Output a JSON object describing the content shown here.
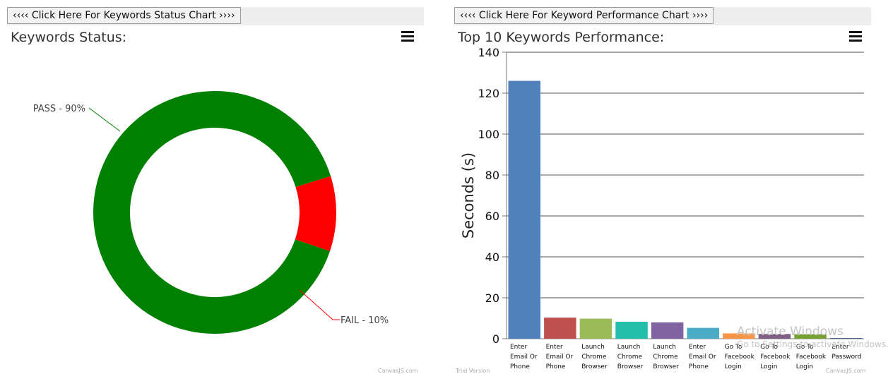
{
  "left": {
    "button_label": "‹‹‹‹ Click Here For Keywords Status Chart ››››",
    "credit": "CanvasJS.com"
  },
  "right": {
    "button_label": "‹‹‹‹ Click Here For Keyword Performance Chart ››››",
    "credit_left": "Trial Version",
    "credit_right": "CanvasJS.com"
  },
  "watermark": {
    "line1": "Activate Windows",
    "line2": "Go to Settings to activate Windows."
  },
  "chart_data": [
    {
      "type": "pie",
      "title": "Keywords Status:",
      "labels": [
        "PASS - 90%",
        "FAIL - 10%"
      ],
      "values": [
        90,
        10
      ],
      "colors": [
        "#008000",
        "#ff0000"
      ],
      "donut": true,
      "legend": "none"
    },
    {
      "type": "bar",
      "title": "Top 10 Keywords Performance:",
      "xlabel": "",
      "ylabel": "Seconds (s)",
      "ylim": [
        0,
        140
      ],
      "yticks": [
        0,
        20,
        40,
        60,
        80,
        100,
        120,
        140
      ],
      "grid": true,
      "categories": [
        [
          "Enter",
          "Email Or",
          "Phone"
        ],
        [
          "Enter",
          "Email Or",
          "Phone"
        ],
        [
          "Launch",
          "Chrome",
          "Browser"
        ],
        [
          "Launch",
          "Chrome",
          "Browser"
        ],
        [
          "Launch",
          "Chrome",
          "Browser"
        ],
        [
          "Enter",
          "Email Or",
          "Phone"
        ],
        [
          "Go To",
          "Facebook",
          "Login"
        ],
        [
          "Go To",
          "Facebook",
          "Login"
        ],
        [
          "Go To",
          "Facebook",
          "Login"
        ],
        [
          "Enter",
          "Password"
        ]
      ],
      "values": [
        126,
        10.3,
        9.8,
        8.3,
        8.0,
        5.3,
        2.6,
        2.3,
        2.2,
        0.3
      ],
      "colors": [
        "#4f81bc",
        "#c0504e",
        "#9bbb58",
        "#23bfaa",
        "#8064a1",
        "#4aacc5",
        "#f79647",
        "#7f6084",
        "#77a033",
        "#33558b"
      ]
    }
  ]
}
